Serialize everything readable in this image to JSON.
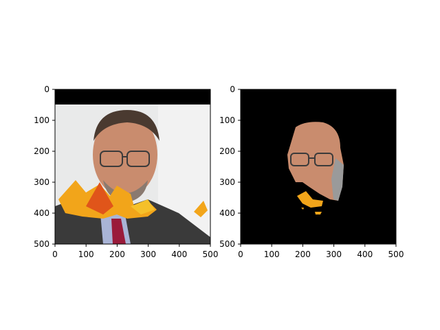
{
  "panels": [
    {
      "id": "left",
      "image_desc": "face-with-autumn-leaves-occlusion",
      "x_ticks": [
        "0",
        "100",
        "200",
        "300",
        "400",
        "500"
      ],
      "y_ticks": [
        "0",
        "100",
        "200",
        "300",
        "400",
        "500"
      ],
      "x_range": [
        0,
        500
      ],
      "y_range": [
        0,
        500
      ]
    },
    {
      "id": "right",
      "image_desc": "segmented-face-mask-on-black",
      "x_ticks": [
        "0",
        "100",
        "200",
        "300",
        "400",
        "500"
      ],
      "y_ticks": [
        "0",
        "100",
        "200",
        "300",
        "400",
        "500"
      ],
      "x_range": [
        0,
        500
      ],
      "y_range": [
        0,
        500
      ]
    }
  ],
  "colors": {
    "background": "#ffffff",
    "mask_bg": "#000000",
    "leaf_orange": "#f2a51a",
    "leaf_red": "#e0551a",
    "suit": "#3a3a3a",
    "shirt": "#a9b4d6",
    "tie": "#9a1b3a",
    "skin": "#c98c6e"
  }
}
